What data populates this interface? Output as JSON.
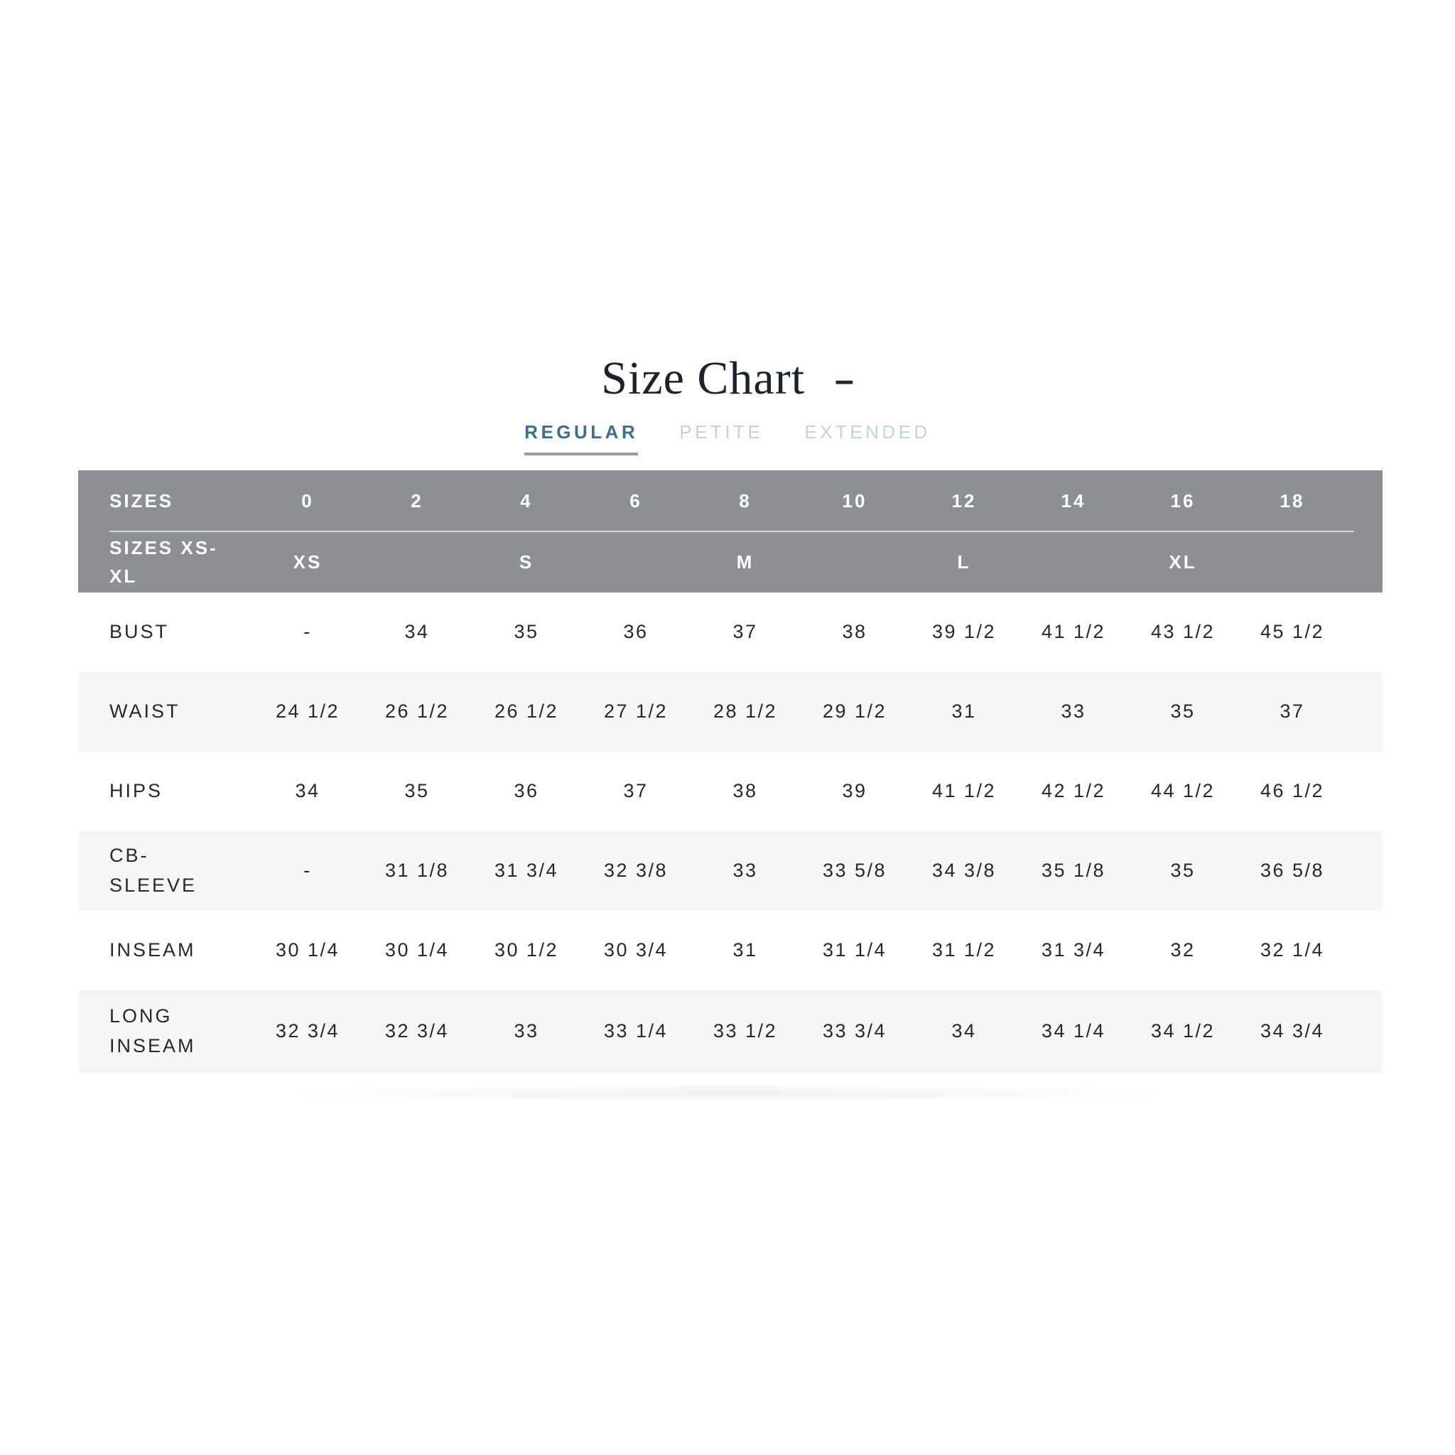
{
  "page": {
    "title": "Size Chart",
    "collapse_glyph": "–"
  },
  "tabs": [
    {
      "label": "REGULAR",
      "active": true
    },
    {
      "label": "PETITE",
      "active": false
    },
    {
      "label": "EXTENDED",
      "active": false
    }
  ],
  "colors": {
    "active_tab": "#3d6e91",
    "inactive_tab": "#c3d3de",
    "tab_underline": "#9b9b9b",
    "header_background": "#8b9095",
    "header_text": "#ffffff",
    "alt_row_background": "#f6f6f6",
    "body_text": "#27282b"
  },
  "table": {
    "header_row_1": {
      "label": "SIZES",
      "values": [
        "0",
        "2",
        "4",
        "6",
        "8",
        "10",
        "12",
        "14",
        "16",
        "18"
      ]
    },
    "header_row_2": {
      "label": "SIZES XS-XL",
      "values": [
        "XS",
        "",
        "S",
        "",
        "M",
        "",
        "L",
        "",
        "XL",
        ""
      ]
    },
    "rows": [
      {
        "label": "BUST",
        "values": [
          "-",
          "34",
          "35",
          "36",
          "37",
          "38",
          "39 1/2",
          "41 1/2",
          "43 1/2",
          "45 1/2"
        ]
      },
      {
        "label": "WAIST",
        "values": [
          "24 1/2",
          "26 1/2",
          "26 1/2",
          "27 1/2",
          "28 1/2",
          "29 1/2",
          "31",
          "33",
          "35",
          "37"
        ]
      },
      {
        "label": "HIPS",
        "values": [
          "34",
          "35",
          "36",
          "37",
          "38",
          "39",
          "41 1/2",
          "42 1/2",
          "44 1/2",
          "46 1/2"
        ]
      },
      {
        "label": "CB-SLEEVE",
        "values": [
          "-",
          "31 1/8",
          "31 3/4",
          "32 3/8",
          "33",
          "33 5/8",
          "34 3/8",
          "35 1/8",
          "35",
          "36 5/8"
        ]
      },
      {
        "label": "INSEAM",
        "values": [
          "30 1/4",
          "30 1/4",
          "30 1/2",
          "30 3/4",
          "31",
          "31 1/4",
          "31 1/2",
          "31 3/4",
          "32",
          "32 1/4"
        ]
      },
      {
        "label": "LONG INSEAM",
        "values": [
          "32 3/4",
          "32 3/4",
          "33",
          "33 1/4",
          "33 1/2",
          "33 3/4",
          "34",
          "34 1/4",
          "34 1/2",
          "34 3/4"
        ]
      }
    ]
  }
}
